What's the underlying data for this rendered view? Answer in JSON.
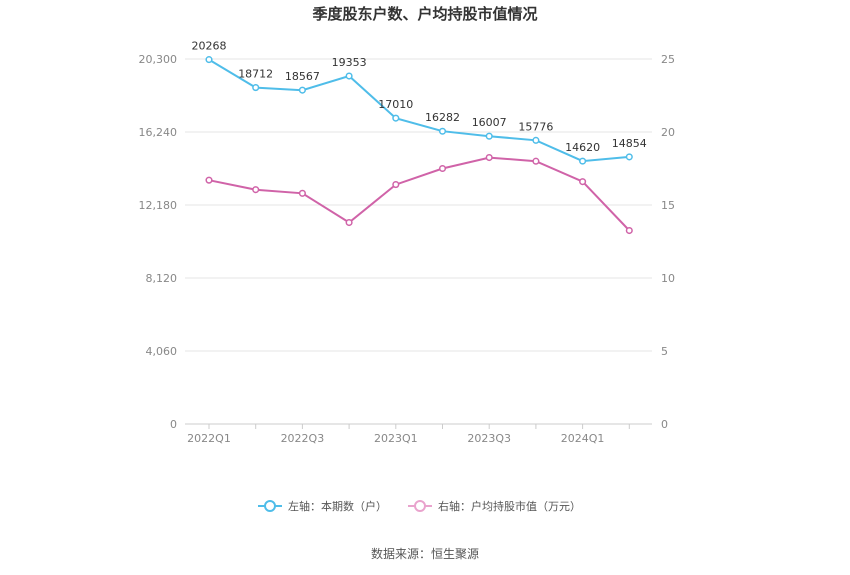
{
  "chart_data": {
    "type": "line",
    "title": "季度股东户数、户均持股市值情况",
    "source": "数据来源：恒生聚源",
    "x_ticks": [
      "2022Q1",
      "2022Q3",
      "2023Q1",
      "2023Q3",
      "2024Q1"
    ],
    "categories": [
      "2022Q1",
      "2022Q2",
      "2022Q3",
      "2022Q4",
      "2023Q1",
      "2023Q2",
      "2023Q3",
      "2023Q4",
      "2024Q1",
      "2024Q2"
    ],
    "left_axis": {
      "ticks": [
        "0",
        "4,060",
        "8,120",
        "12,180",
        "16,240",
        "20,300"
      ],
      "ylim": [
        0,
        20300
      ]
    },
    "right_axis": {
      "ticks": [
        "0",
        "5",
        "10",
        "15",
        "20",
        "25"
      ],
      "ylim": [
        0,
        25
      ]
    },
    "grid": true,
    "legend_position": "bottom",
    "series": [
      {
        "name": "左轴：本期数（户）",
        "axis": "left",
        "color": "#4fbde9",
        "values": [
          20268,
          18712,
          18567,
          19353,
          17010,
          16282,
          16007,
          15776,
          14620,
          14854
        ],
        "labels": [
          "20268",
          "18712",
          "18567",
          "19353",
          "17010",
          "16282",
          "16007",
          "15776",
          "14620",
          "14854"
        ]
      },
      {
        "name": "右轴：户均持股市值（万元）",
        "axis": "right",
        "color": "#d063a8",
        "values": [
          16.7,
          16.05,
          15.8,
          13.8,
          16.4,
          17.5,
          18.25,
          18.0,
          16.6,
          13.25
        ]
      }
    ]
  }
}
